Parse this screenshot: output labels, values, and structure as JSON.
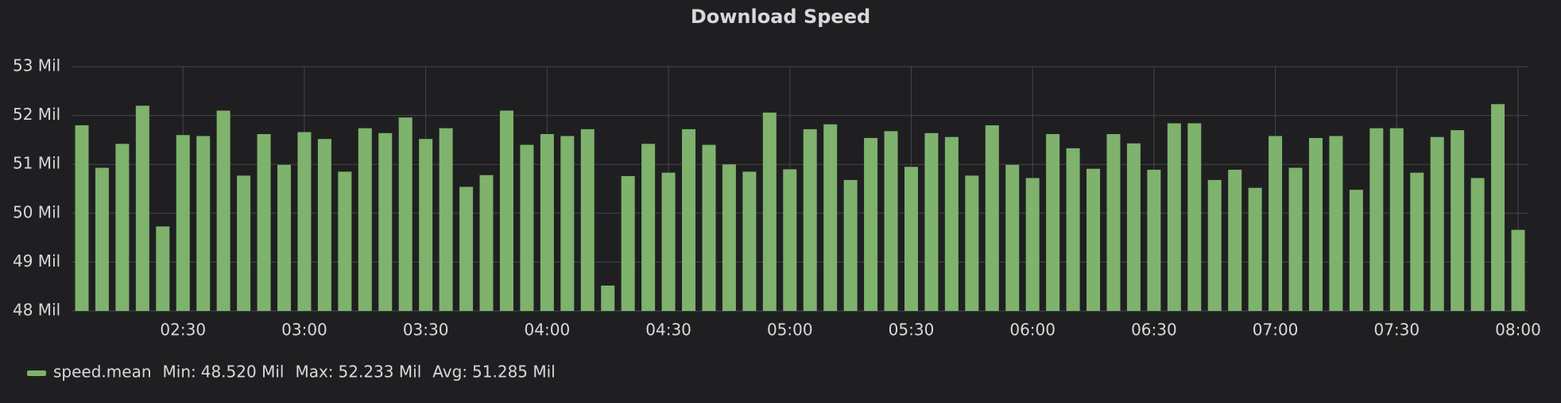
{
  "chart_data": {
    "type": "bar",
    "title": "Download Speed",
    "x": [
      "02:05",
      "02:10",
      "02:15",
      "02:20",
      "02:25",
      "02:30",
      "02:35",
      "02:40",
      "02:45",
      "02:50",
      "02:55",
      "03:00",
      "03:05",
      "03:10",
      "03:15",
      "03:20",
      "03:25",
      "03:30",
      "03:35",
      "03:40",
      "03:45",
      "03:50",
      "03:55",
      "04:00",
      "04:05",
      "04:10",
      "04:15",
      "04:20",
      "04:25",
      "04:30",
      "04:35",
      "04:40",
      "04:45",
      "04:50",
      "04:55",
      "05:00",
      "05:05",
      "05:10",
      "05:15",
      "05:20",
      "05:25",
      "05:30",
      "05:35",
      "05:40",
      "05:45",
      "05:50",
      "05:55",
      "06:00",
      "06:05",
      "06:10",
      "06:15",
      "06:20",
      "06:25",
      "06:30",
      "06:35",
      "06:40",
      "06:45",
      "06:50",
      "06:55",
      "07:00",
      "07:05",
      "07:10",
      "07:15",
      "07:20",
      "07:25",
      "07:30",
      "07:35",
      "07:40",
      "07:45",
      "07:50",
      "07:55",
      "08:00"
    ],
    "series": [
      {
        "name": "speed.mean",
        "color": "#7eb26d",
        "values": [
          51.8,
          50.93,
          51.42,
          52.2,
          49.73,
          51.6,
          51.58,
          52.1,
          50.77,
          51.62,
          50.99,
          51.66,
          51.52,
          50.85,
          51.74,
          51.64,
          51.96,
          51.52,
          51.74,
          50.54,
          50.78,
          52.1,
          51.4,
          51.62,
          51.58,
          51.72,
          48.52,
          50.76,
          51.42,
          50.83,
          51.72,
          51.4,
          51.0,
          50.85,
          52.06,
          50.9,
          51.72,
          51.82,
          50.68,
          51.54,
          51.68,
          50.95,
          51.64,
          51.56,
          50.77,
          51.8,
          50.99,
          50.72,
          51.62,
          51.33,
          50.91,
          51.62,
          51.43,
          50.89,
          51.84,
          51.84,
          50.68,
          50.89,
          50.52,
          51.58,
          50.93,
          51.54,
          51.58,
          50.48,
          51.74,
          51.74,
          50.83,
          51.56,
          51.7,
          50.72,
          52.233,
          49.66
        ]
      }
    ],
    "ylim": [
      48,
      53
    ],
    "yticks": [
      {
        "value": 48,
        "label": "48 Mil"
      },
      {
        "value": 49,
        "label": "49 Mil"
      },
      {
        "value": 50,
        "label": "50 Mil"
      },
      {
        "value": 51,
        "label": "51 Mil"
      },
      {
        "value": 52,
        "label": "52 Mil"
      },
      {
        "value": 53,
        "label": "53 Mil"
      }
    ],
    "xticks": [
      "02:30",
      "03:00",
      "03:30",
      "04:00",
      "04:30",
      "05:00",
      "05:30",
      "06:00",
      "06:30",
      "07:00",
      "07:30",
      "08:00"
    ],
    "grid": true,
    "legend_stats": [
      {
        "label": "Min:",
        "value": "48.520 Mil"
      },
      {
        "label": "Max:",
        "value": "52.233 Mil"
      },
      {
        "label": "Avg:",
        "value": "51.285 Mil"
      }
    ]
  }
}
